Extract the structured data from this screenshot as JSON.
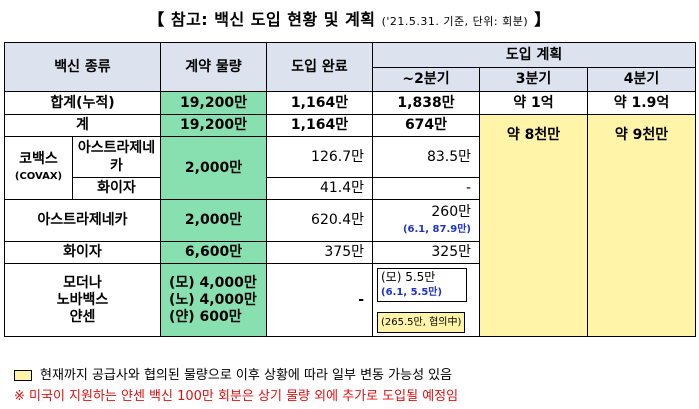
{
  "title": {
    "main": "【 참고: 백신 도입 현황 및 계획",
    "sub": "('21.5.31. 기준, 단위: 회분)",
    "end": "】"
  },
  "headers": {
    "vaccine_type": "백신 종류",
    "contract": "계약 물량",
    "introduced": "도입 완료",
    "plan": "도입 계획",
    "q2": "~2분기",
    "q3": "3분기",
    "q4": "4분기"
  },
  "rows": {
    "total": {
      "label": "합계(누적)",
      "contract": "19,200만",
      "introduced": "1,164만",
      "q2": "1,838만",
      "q3": "약 1억",
      "q4": "약 1.9억"
    },
    "sum": {
      "label": "계",
      "contract": "19,200만",
      "introduced": "1,164만",
      "q2": "674만"
    },
    "covax": {
      "label": "코백스",
      "sublabel": "(COVAX)",
      "contract": "2,000만",
      "az_label": "아스트라제네카",
      "az_introduced": "126.7만",
      "az_q2": "83.5만",
      "pf_label": "화이자",
      "pf_introduced": "41.4만",
      "pf_q2": "-"
    },
    "az": {
      "label": "아스트라제네카",
      "contract": "2,000만",
      "introduced": "620.4만",
      "q2": "260만",
      "q2_note": "(6.1, 87.9만)"
    },
    "pfizer": {
      "label": "화이자",
      "contract": "6,600만",
      "introduced": "375만",
      "q2": "325만"
    },
    "others": {
      "label1": "모더나",
      "label2": "노바백스",
      "label3": "얀센",
      "contract1": "(모) 4,000만",
      "contract2": "(노) 4,000만",
      "contract3": "(얀)  600만",
      "introduced": "-",
      "q2_main": "(모) 5.5만",
      "q2_note": "(6.1,   5.5만)",
      "q2_sub": "(265.5만, 협의中)"
    },
    "q3_plan": "약  8천만",
    "q4_plan": "약  9천만"
  },
  "legend": "현재까지 공급사와 협의된 물량으로 이후 상황에 따라 일부 변동 가능성 있음",
  "footnote": "※ 미국이 지원하는 얀센 백신 100만 회분은 상기 물량 외에 추가로 도입될 예정임",
  "colors": {
    "header": "#dde3ee",
    "green": "#88e0b0",
    "yellow": "#fff4a8",
    "blue_note": "#1e32c8",
    "red_note": "#e01010"
  }
}
